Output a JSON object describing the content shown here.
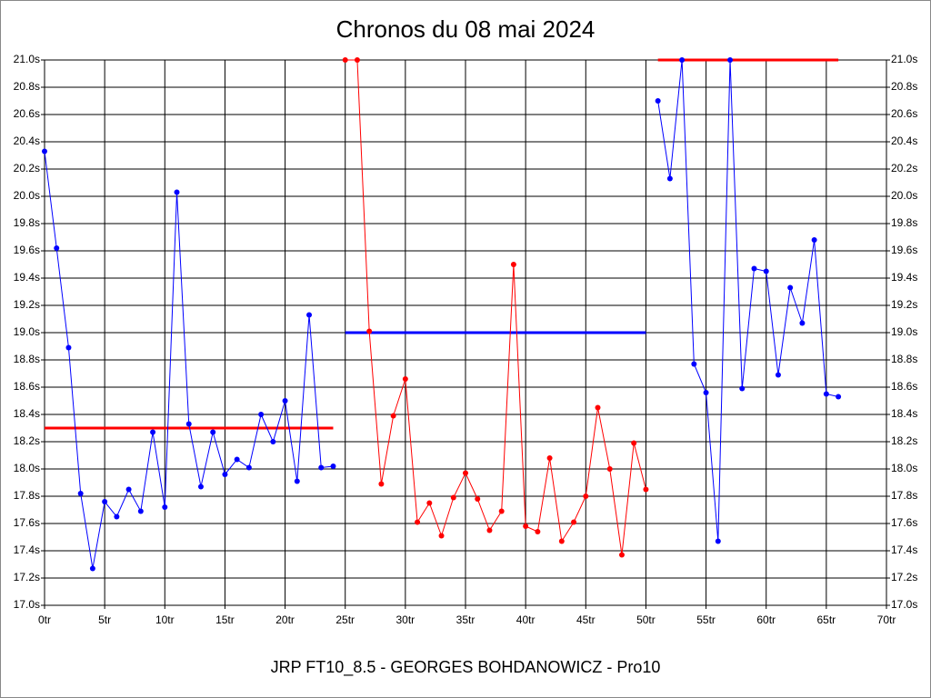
{
  "chart_data": {
    "type": "line",
    "title": "Chronos du 08 mai 2024",
    "footer": "JRP FT10_8.5 - GEORGES BOHDANOWICZ - Pro10",
    "xlim": [
      0,
      70
    ],
    "xticks": [
      {
        "value": 0,
        "label": "0tr"
      },
      {
        "value": 5,
        "label": "5tr"
      },
      {
        "value": 10,
        "label": "10tr"
      },
      {
        "value": 15,
        "label": "15tr"
      },
      {
        "value": 20,
        "label": "20tr"
      },
      {
        "value": 25,
        "label": "25tr"
      },
      {
        "value": 30,
        "label": "30tr"
      },
      {
        "value": 35,
        "label": "35tr"
      },
      {
        "value": 40,
        "label": "40tr"
      },
      {
        "value": 45,
        "label": "45tr"
      },
      {
        "value": 50,
        "label": "50tr"
      },
      {
        "value": 55,
        "label": "55tr"
      },
      {
        "value": 60,
        "label": "60tr"
      },
      {
        "value": 65,
        "label": "65tr"
      },
      {
        "value": 70,
        "label": "70tr"
      }
    ],
    "ylim": [
      17.0,
      21.0
    ],
    "yticks": [
      {
        "value": 17.0,
        "label": "17.0s"
      },
      {
        "value": 17.2,
        "label": "17.2s"
      },
      {
        "value": 17.4,
        "label": "17.4s"
      },
      {
        "value": 17.6,
        "label": "17.6s"
      },
      {
        "value": 17.8,
        "label": "17.8s"
      },
      {
        "value": 18.0,
        "label": "18.0s"
      },
      {
        "value": 18.2,
        "label": "18.2s"
      },
      {
        "value": 18.4,
        "label": "18.4s"
      },
      {
        "value": 18.6,
        "label": "18.6s"
      },
      {
        "value": 18.8,
        "label": "18.8s"
      },
      {
        "value": 19.0,
        "label": "19.0s"
      },
      {
        "value": 19.2,
        "label": "19.2s"
      },
      {
        "value": 19.4,
        "label": "19.4s"
      },
      {
        "value": 19.6,
        "label": "19.6s"
      },
      {
        "value": 19.8,
        "label": "19.8s"
      },
      {
        "value": 20.0,
        "label": "20.0s"
      },
      {
        "value": 20.2,
        "label": "20.2s"
      },
      {
        "value": 20.4,
        "label": "20.4s"
      },
      {
        "value": 20.6,
        "label": "20.6s"
      },
      {
        "value": 20.8,
        "label": "20.8s"
      },
      {
        "value": 21.0,
        "label": "21.0s"
      }
    ],
    "grid": true,
    "right_axis": true,
    "series": [
      {
        "color": "#0000ff",
        "x": [
          0,
          1,
          2,
          3,
          4,
          5,
          6,
          7,
          8,
          9,
          10,
          11,
          12,
          13,
          14,
          15,
          16,
          17,
          18,
          19,
          20,
          21,
          22,
          23,
          24
        ],
        "values": [
          20.33,
          19.62,
          18.89,
          17.82,
          17.27,
          17.76,
          17.65,
          17.85,
          17.69,
          18.27,
          17.72,
          20.03,
          18.33,
          17.87,
          18.27,
          17.96,
          18.07,
          18.01,
          18.4,
          18.2,
          18.5,
          17.91,
          19.13,
          18.01,
          18.02
        ]
      },
      {
        "color": "#ff0000",
        "x": [
          25,
          26,
          27,
          28,
          29,
          30,
          31,
          32,
          33,
          34,
          35,
          36,
          37,
          38,
          39,
          40,
          41,
          42,
          43,
          44,
          45,
          46,
          47,
          48,
          49,
          50
        ],
        "values": [
          21.0,
          21.0,
          19.01,
          17.89,
          18.39,
          18.66,
          17.61,
          17.75,
          17.51,
          17.79,
          17.97,
          17.78,
          17.55,
          17.69,
          19.5,
          17.58,
          17.54,
          18.08,
          17.47,
          17.61,
          17.8,
          18.45,
          18.0,
          17.37,
          18.19,
          17.85
        ]
      },
      {
        "color": "#0000ff",
        "x": [
          51,
          52,
          53,
          54,
          55,
          56,
          57,
          58,
          59,
          60,
          61,
          62,
          63,
          64,
          65,
          66
        ],
        "values": [
          20.7,
          20.13,
          21.0,
          18.77,
          18.56,
          17.47,
          21.0,
          18.59,
          19.47,
          19.45,
          18.69,
          19.33,
          19.07,
          19.68,
          18.55,
          18.53
        ]
      }
    ],
    "reference_lines": [
      {
        "value": 18.3,
        "x": [
          0,
          24
        ],
        "color": "#ff0000"
      },
      {
        "value": 19.0,
        "x": [
          25,
          50
        ],
        "color": "#0000ff"
      },
      {
        "value": 21.0,
        "x": [
          51,
          66
        ],
        "color": "#ff0000"
      }
    ]
  }
}
